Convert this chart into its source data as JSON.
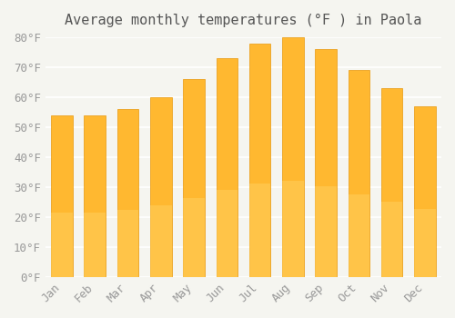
{
  "title": "Average monthly temperatures (°F ) in Paola",
  "months": [
    "Jan",
    "Feb",
    "Mar",
    "Apr",
    "May",
    "Jun",
    "Jul",
    "Aug",
    "Sep",
    "Oct",
    "Nov",
    "Dec"
  ],
  "values": [
    54,
    54,
    56,
    60,
    66,
    73,
    78,
    80,
    76,
    69,
    63,
    57
  ],
  "bar_color_top": "#FFA500",
  "bar_color_bottom": "#FFD070",
  "ylim": [
    0,
    80
  ],
  "yticks": [
    0,
    10,
    20,
    30,
    40,
    50,
    60,
    70,
    80
  ],
  "ytick_labels": [
    "0°F",
    "10°F",
    "20°F",
    "30°F",
    "40°F",
    "50°F",
    "60°F",
    "70°F",
    "80°F"
  ],
  "background_color": "#f5f5f0",
  "grid_color": "#ffffff",
  "title_fontsize": 11,
  "tick_fontsize": 9,
  "bar_edge_color": "#E8A000"
}
